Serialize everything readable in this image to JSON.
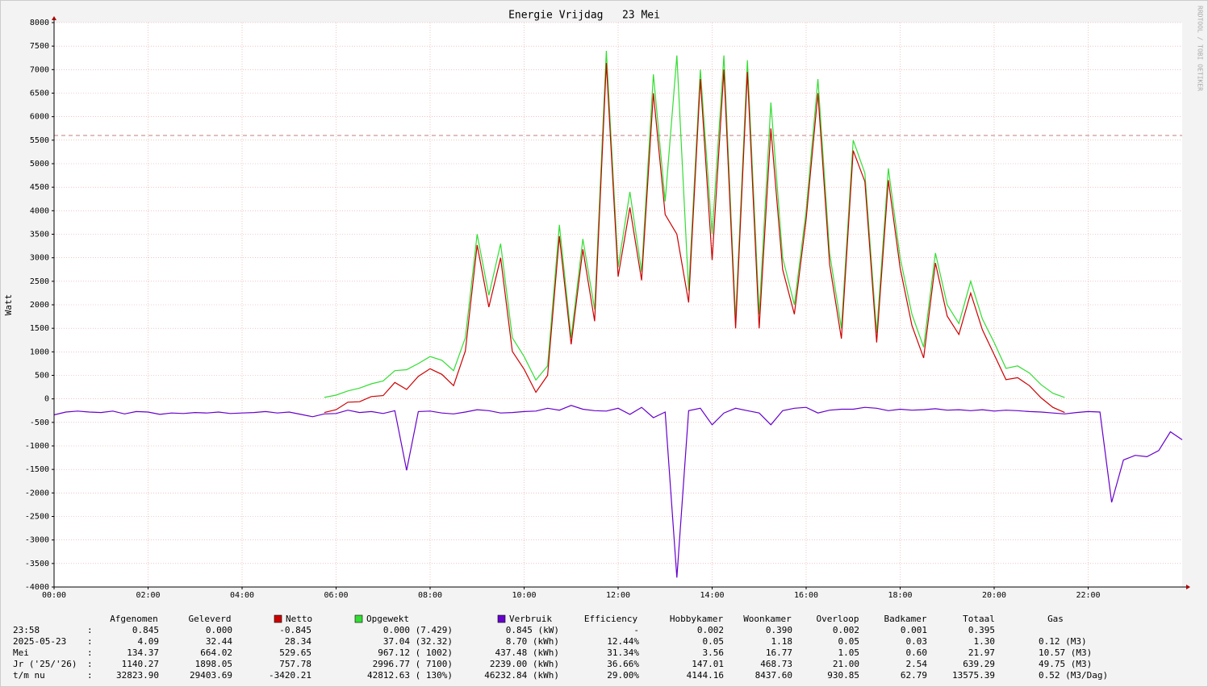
{
  "chart_data": {
    "type": "line",
    "title": "Energie Vrijdag   23 Mei",
    "y_label": "Watt",
    "side_text": "RRDTOOL / TOBI OETIKER",
    "xlim": [
      0,
      24
    ],
    "xticks": [
      {
        "value": 0,
        "label": "00:00"
      },
      {
        "value": 2,
        "label": "02:00"
      },
      {
        "value": 4,
        "label": "04:00"
      },
      {
        "value": 6,
        "label": "06:00"
      },
      {
        "value": 8,
        "label": "08:00"
      },
      {
        "value": 10,
        "label": "10:00"
      },
      {
        "value": 12,
        "label": "12:00"
      },
      {
        "value": 14,
        "label": "14:00"
      },
      {
        "value": 16,
        "label": "16:00"
      },
      {
        "value": 18,
        "label": "18:00"
      },
      {
        "value": 20,
        "label": "20:00"
      },
      {
        "value": 22,
        "label": "22:00"
      }
    ],
    "ylim": [
      -4000,
      8000
    ],
    "yticks": [
      -4000,
      -3500,
      -3000,
      -2500,
      -2000,
      -1500,
      -1000,
      -500,
      0,
      500,
      1000,
      1500,
      2000,
      2500,
      3000,
      3500,
      4000,
      4500,
      5000,
      5500,
      6000,
      6500,
      7000,
      7500,
      8000
    ],
    "grid": true,
    "reference_line": 5600,
    "x": [
      0,
      0.25,
      0.5,
      0.75,
      1,
      1.25,
      1.5,
      1.75,
      2,
      2.25,
      2.5,
      2.75,
      3,
      3.25,
      3.5,
      3.75,
      4,
      4.25,
      4.5,
      4.75,
      5,
      5.25,
      5.5,
      5.75,
      6,
      6.25,
      6.5,
      6.75,
      7,
      7.25,
      7.5,
      7.75,
      8,
      8.25,
      8.5,
      8.75,
      9,
      9.25,
      9.5,
      9.75,
      10,
      10.25,
      10.5,
      10.75,
      11,
      11.25,
      11.5,
      11.75,
      12,
      12.25,
      12.5,
      12.75,
      13,
      13.25,
      13.5,
      13.75,
      14,
      14.25,
      14.5,
      14.75,
      15,
      15.25,
      15.5,
      15.75,
      16,
      16.25,
      16.5,
      16.75,
      17,
      17.25,
      17.5,
      17.75,
      18,
      18.25,
      18.5,
      18.75,
      19,
      19.25,
      19.5,
      19.75,
      20,
      20.25,
      20.5,
      20.75,
      21,
      21.25,
      21.5,
      21.75,
      22,
      22.25,
      22.5,
      22.75,
      23,
      23.25,
      23.5,
      23.75,
      24
    ],
    "series": [
      {
        "name": "Opgewekt",
        "color": "#33dd33",
        "values": [
          null,
          null,
          null,
          null,
          null,
          null,
          null,
          null,
          null,
          null,
          null,
          null,
          null,
          null,
          null,
          null,
          null,
          null,
          null,
          null,
          null,
          null,
          null,
          30,
          80,
          170,
          230,
          320,
          380,
          600,
          620,
          750,
          900,
          820,
          600,
          1300,
          3500,
          2200,
          3300,
          1300,
          900,
          400,
          700,
          3700,
          1300,
          3400,
          1900,
          7400,
          2800,
          4400,
          2700,
          6900,
          4200,
          7300,
          2300,
          7000,
          3500,
          7300,
          1700,
          7200,
          1800,
          6300,
          3000,
          2000,
          4000,
          6800,
          3100,
          1500,
          5500,
          4800,
          1400,
          4900,
          3000,
          1800,
          1100,
          3100,
          2000,
          1600,
          2500,
          1700,
          1200,
          650,
          700,
          550,
          300,
          120,
          30,
          null,
          null,
          null,
          null,
          null,
          null,
          null,
          null,
          null,
          null
        ]
      },
      {
        "name": "Netto",
        "color": "#cc0000",
        "values": [
          null,
          null,
          null,
          null,
          null,
          null,
          null,
          null,
          null,
          null,
          null,
          null,
          null,
          null,
          null,
          null,
          null,
          null,
          null,
          null,
          null,
          null,
          null,
          -290,
          -230,
          -70,
          -60,
          50,
          70,
          350,
          200,
          480,
          640,
          520,
          280,
          1020,
          3270,
          1950,
          3000,
          1010,
          630,
          140,
          500,
          3460,
          1160,
          3180,
          1650,
          7140,
          2600,
          4070,
          2520,
          6500,
          3920,
          3500,
          2050,
          6800,
          2950,
          7000,
          1500,
          6950,
          1500,
          5750,
          2750,
          1800,
          3820,
          6500,
          2860,
          1280,
          5280,
          4620,
          1200,
          4650,
          2780,
          1560,
          870,
          2890,
          1760,
          1370,
          2250,
          1470,
          940,
          410,
          450,
          280,
          20,
          -180,
          -290,
          null,
          null,
          null,
          null,
          null,
          null,
          null,
          null,
          null,
          null
        ]
      },
      {
        "name": "Verbruik",
        "color": "#6600cc",
        "values": [
          -340,
          -280,
          -260,
          -280,
          -290,
          -260,
          -320,
          -270,
          -280,
          -330,
          -300,
          -310,
          -290,
          -300,
          -280,
          -310,
          -300,
          -290,
          -270,
          -300,
          -280,
          -330,
          -380,
          -320,
          -310,
          -240,
          -290,
          -270,
          -310,
          -250,
          -1520,
          -270,
          -260,
          -300,
          -320,
          -280,
          -230,
          -250,
          -300,
          -290,
          -270,
          -260,
          -200,
          -240,
          -140,
          -220,
          -250,
          -260,
          -200,
          -330,
          -180,
          -400,
          -280,
          -3800,
          -250,
          -200,
          -550,
          -300,
          -200,
          -250,
          -300,
          -550,
          -250,
          -200,
          -180,
          -300,
          -240,
          -220,
          -220,
          -180,
          -200,
          -250,
          -220,
          -240,
          -230,
          -210,
          -240,
          -230,
          -250,
          -230,
          -260,
          -240,
          -250,
          -270,
          -280,
          -300,
          -320,
          -290,
          -270,
          -280,
          -2200,
          -1300,
          -1200,
          -1230,
          -1100,
          -700,
          -870
        ]
      }
    ]
  },
  "table": {
    "columns": [
      "Afgenomen",
      "Geleverd",
      "Efficiency",
      "Hobbykamer",
      "Woonkamer",
      "Overloop",
      "Badkamer",
      "Totaal",
      "Gas"
    ],
    "separator": ":",
    "rows": [
      {
        "label": "23:58",
        "cells": [
          "0.845",
          "0.000",
          "-0.845",
          "0.000 (7.429)",
          "0.845 (kW)",
          "-",
          "0.002",
          "0.390",
          "0.002",
          "0.001",
          "0.395"
        ]
      },
      {
        "label": "2025-05-23",
        "cells": [
          "4.09",
          "32.44",
          "28.34",
          "37.04 (32.32)",
          "8.70 (kWh)",
          "12.44%",
          "0.05",
          "1.18",
          "0.05",
          "0.03",
          "1.30",
          "0.12 (M3)"
        ]
      },
      {
        "label": "Mei",
        "cells": [
          "134.37",
          "664.02",
          "529.65",
          "967.12 ( 1002)",
          "437.48 (kWh)",
          "31.34%",
          "3.56",
          "16.77",
          "1.05",
          "0.60",
          "21.97",
          "10.57 (M3)"
        ]
      },
      {
        "label": "Jr ('25/'26)",
        "cells": [
          "1140.27",
          "1898.05",
          "757.78",
          "2996.77 ( 7100)",
          "2239.00 (kWh)",
          "36.66%",
          "147.01",
          "468.73",
          "21.00",
          "2.54",
          "639.29",
          "49.75 (M3)"
        ]
      },
      {
        "label": "t/m nu",
        "cells": [
          "32823.90",
          "29403.69",
          "-3420.21",
          "42812.63 ( 130%)",
          "46232.84 (kWh)",
          "29.00%",
          "4144.16",
          "8437.60",
          "930.85",
          "62.79",
          "13575.39",
          "0.52 (M3/Dag)"
        ]
      }
    ]
  }
}
